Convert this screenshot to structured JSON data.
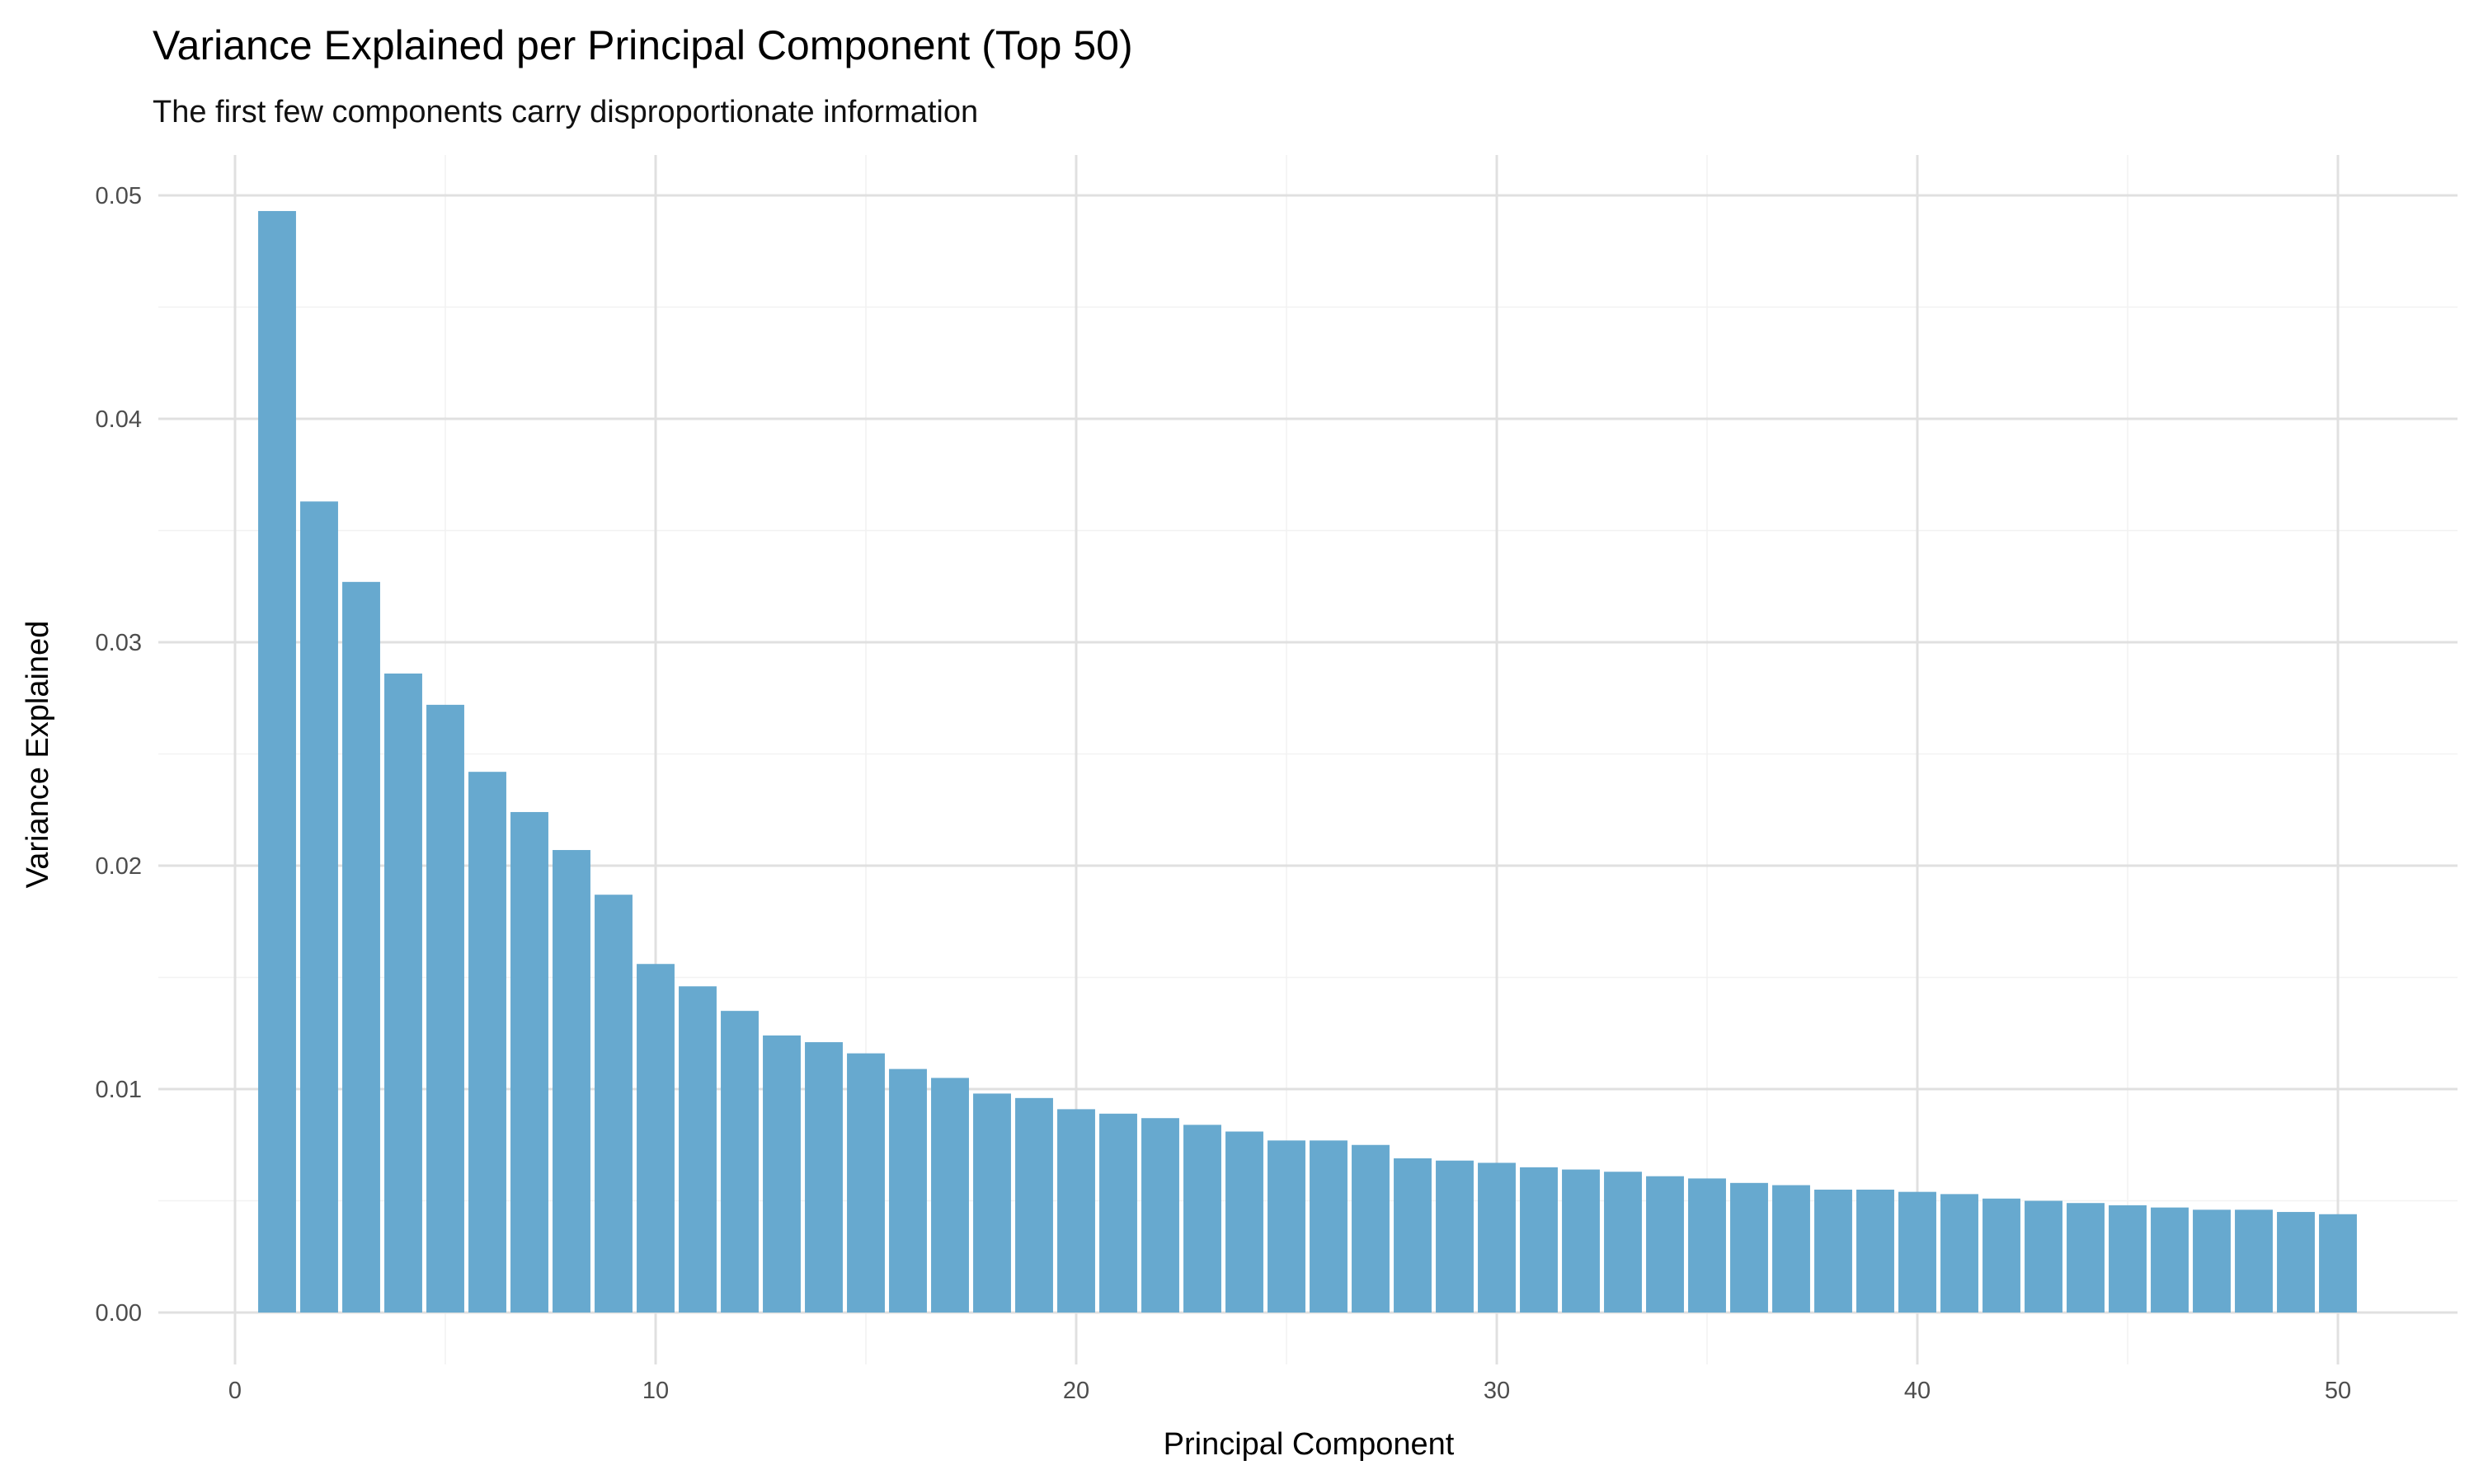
{
  "chart_data": {
    "type": "bar",
    "title": "Variance Explained per Principal Component (Top 50)",
    "subtitle": "The first few components carry disproportionate information",
    "xlabel": "Principal Component",
    "ylabel": "Variance Explained",
    "xlim": [
      0,
      52
    ],
    "ylim": [
      0,
      0.052
    ],
    "x_ticks": [
      0,
      10,
      20,
      30,
      40,
      50
    ],
    "x_tick_labels": [
      "0",
      "10",
      "20",
      "30",
      "40",
      "50"
    ],
    "y_ticks": [
      0,
      0.01,
      0.02,
      0.03,
      0.04,
      0.05
    ],
    "y_tick_labels": [
      "0.00",
      "0.01",
      "0.02",
      "0.03",
      "0.04",
      "0.05"
    ],
    "grid": true,
    "bar_color": "#67a9cf",
    "x": [
      1,
      2,
      3,
      4,
      5,
      6,
      7,
      8,
      9,
      10,
      11,
      12,
      13,
      14,
      15,
      16,
      17,
      18,
      19,
      20,
      21,
      22,
      23,
      24,
      25,
      26,
      27,
      28,
      29,
      30,
      31,
      32,
      33,
      34,
      35,
      36,
      37,
      38,
      39,
      40,
      41,
      42,
      43,
      44,
      45,
      46,
      47,
      48,
      49,
      50
    ],
    "values": [
      0.0493,
      0.0363,
      0.0327,
      0.0286,
      0.0272,
      0.0242,
      0.0224,
      0.0207,
      0.0187,
      0.0156,
      0.0146,
      0.0135,
      0.0124,
      0.0121,
      0.0116,
      0.0109,
      0.0105,
      0.0098,
      0.0096,
      0.0091,
      0.0089,
      0.0087,
      0.0084,
      0.0081,
      0.0077,
      0.0077,
      0.0075,
      0.0069,
      0.0068,
      0.0067,
      0.0065,
      0.0064,
      0.0063,
      0.0061,
      0.006,
      0.0058,
      0.0057,
      0.0055,
      0.0055,
      0.0054,
      0.0053,
      0.0051,
      0.005,
      0.0049,
      0.0048,
      0.0047,
      0.0046,
      0.0046,
      0.0045,
      0.0044
    ]
  }
}
